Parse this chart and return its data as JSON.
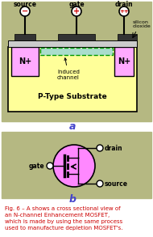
{
  "bg_color": "#b5b882",
  "fig_bg": "#ffffff",
  "substrate_color": "#ffff99",
  "nplus_color": "#ffaaff",
  "channel_color": "#aaddcc",
  "gate_oxide_color": "#cccccc",
  "gate_metal_color": "#333333",
  "symbol_circle_color": "#ff88ff",
  "text_color": "#000000",
  "red_color": "#cc0000",
  "caption_color": "#cc0000",
  "blue_color": "#4444cc",
  "white": "#ffffff",
  "black": "#000000",
  "green_border": "#009900"
}
